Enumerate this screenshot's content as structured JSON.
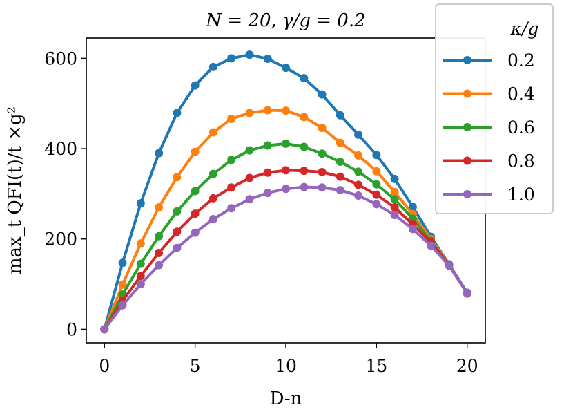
{
  "chart_data": {
    "type": "line",
    "title": "N = 20, γ/g = 0.2",
    "xlabel": "D-n",
    "ylabel": "max_t QFI(t)/t ×g²",
    "xlim": [
      -1,
      21
    ],
    "ylim": [
      -30,
      645
    ],
    "xticks": [
      0,
      5,
      10,
      15,
      20
    ],
    "yticks": [
      0,
      200,
      400,
      600
    ],
    "legend": {
      "title": "κ/g",
      "position": "top-right"
    },
    "x": [
      0,
      1,
      2,
      3,
      4,
      5,
      6,
      7,
      8,
      9,
      10,
      11,
      12,
      13,
      14,
      15,
      16,
      17,
      18,
      19,
      20
    ],
    "series": [
      {
        "name": "0.2",
        "color": "#1f77b4",
        "values": [
          0,
          147,
          279,
          390,
          479,
          540,
          581,
          600,
          608,
          599,
          579,
          556,
          520,
          474,
          431,
          386,
          333,
          271,
          205,
          144,
          81
        ]
      },
      {
        "name": "0.4",
        "color": "#ff7f0e",
        "values": [
          0,
          99,
          190,
          270,
          337,
          393,
          436,
          466,
          479,
          485,
          484,
          470,
          446,
          413,
          385,
          350,
          304,
          255,
          200,
          143,
          79
        ]
      },
      {
        "name": "0.6",
        "color": "#2ca02c",
        "values": [
          0,
          77,
          145,
          206,
          261,
          306,
          344,
          375,
          396,
          407,
          411,
          404,
          389,
          371,
          349,
          321,
          288,
          245,
          196,
          141,
          80
        ]
      },
      {
        "name": "0.8",
        "color": "#d62728",
        "values": [
          0,
          63,
          118,
          169,
          216,
          256,
          290,
          314,
          335,
          347,
          352,
          351,
          348,
          338,
          320,
          298,
          270,
          232,
          193,
          142,
          80
        ]
      },
      {
        "name": "1.0",
        "color": "#9467bd",
        "values": [
          0,
          53,
          100,
          142,
          180,
          214,
          244,
          268,
          288,
          302,
          311,
          315,
          314,
          308,
          296,
          277,
          253,
          222,
          185,
          141,
          80
        ]
      }
    ]
  }
}
